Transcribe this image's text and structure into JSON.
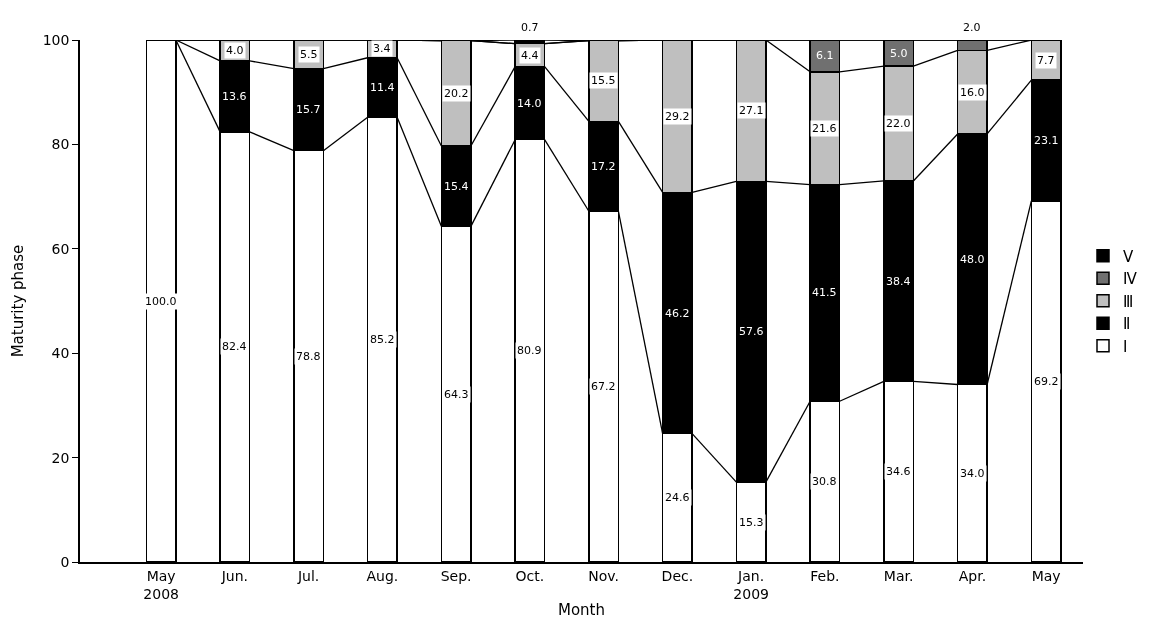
{
  "chart_data": {
    "type": "bar",
    "stacked": true,
    "xlabel": "Month",
    "ylabel": "Maturity phase",
    "categories": [
      "May\n2008",
      "Jun.",
      "Jul.",
      "Aug.",
      "Sep.",
      "Oct.",
      "Nov.",
      "Dec.",
      "Jan.\n2009",
      "Feb.",
      "Mar.",
      "Apr.",
      "May"
    ],
    "series": [
      {
        "name": "Ⅰ",
        "color": "#ffffff",
        "values": [
          100.0,
          82.4,
          78.8,
          85.2,
          64.3,
          80.9,
          67.2,
          24.6,
          15.3,
          30.8,
          34.6,
          34.0,
          69.2
        ],
        "value_labels": [
          "100.0",
          "82.4",
          "78.8",
          "85.2",
          "64.3",
          "80.9",
          "67.2",
          "24.6",
          "15.3",
          "30.8",
          "34.6",
          "34.0",
          "69.2"
        ]
      },
      {
        "name": "Ⅱ",
        "color": "#000000",
        "values": [
          null,
          13.6,
          15.7,
          11.4,
          15.4,
          14.0,
          17.2,
          46.2,
          57.6,
          41.5,
          38.4,
          48.0,
          23.1
        ],
        "value_labels": [
          null,
          "13.6",
          "15.7",
          "11.4",
          "15.4",
          "14.0",
          "17.2",
          "46.2",
          "57.6",
          "41.5",
          "38.4",
          "48.0",
          "23.1"
        ]
      },
      {
        "name": "Ⅲ",
        "color": "#bfbfbf",
        "values": [
          null,
          4.0,
          5.5,
          3.4,
          20.2,
          4.4,
          15.5,
          29.2,
          27.1,
          21.6,
          22.0,
          16.0,
          7.7
        ],
        "value_labels": [
          null,
          "4.0",
          "5.5",
          "3.4",
          "20.2",
          "4.4",
          "15.5",
          "29.2",
          "27.1",
          "21.6",
          "22.0",
          "16.0",
          "7.7"
        ]
      },
      {
        "name": "Ⅳ",
        "color": "#707070",
        "values": [
          null,
          null,
          null,
          null,
          null,
          null,
          null,
          null,
          null,
          6.1,
          5.0,
          2.0,
          null
        ],
        "value_labels": [
          null,
          null,
          null,
          null,
          null,
          null,
          null,
          null,
          null,
          "6.1",
          "5.0",
          "2.0",
          null
        ]
      },
      {
        "name": "Ⅴ",
        "color": "#000000",
        "values": [
          null,
          null,
          null,
          null,
          null,
          0.7,
          null,
          null,
          null,
          null,
          null,
          null,
          null
        ],
        "value_labels": [
          null,
          null,
          null,
          null,
          null,
          "0.7",
          null,
          null,
          null,
          null,
          null,
          null,
          null
        ]
      }
    ],
    "ylim": [
      0,
      100
    ],
    "yticks": [
      0,
      20,
      40,
      60,
      80,
      100
    ],
    "grid": false,
    "legend": "right"
  }
}
